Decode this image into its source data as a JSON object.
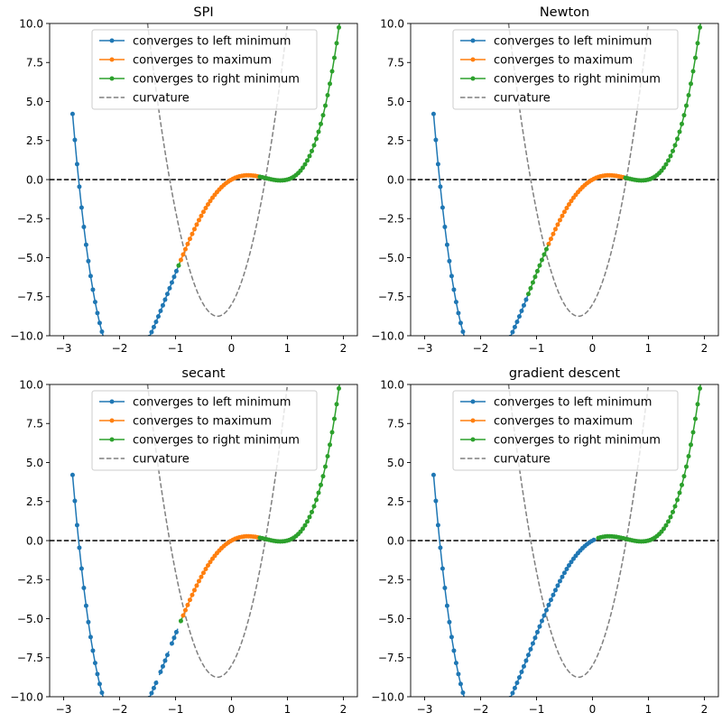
{
  "chart_data": [
    {
      "type": "line",
      "title": "SPI",
      "xlim": [
        -3.25,
        2.25
      ],
      "ylim": [
        -10,
        10
      ],
      "xticks": [
        "−3",
        "−2",
        "−1",
        "0",
        "1",
        "2"
      ],
      "yticks": [
        "−10.0",
        "−7.5",
        "−5.0",
        "−2.5",
        "0.0",
        "2.5",
        "5.0",
        "7.5",
        "10.0"
      ],
      "function": "y = x^4 + x^3 - 4x^2 + 2x (approx. fit)",
      "curvature": "y = 12x^2 + 6x - 8",
      "reference_line_y": 0,
      "legend": {
        "position": "upper-center",
        "entries": [
          "converges to left minimum",
          "converges to maximum",
          "converges to right minimum",
          "curvature"
        ]
      },
      "series": [
        {
          "name": "converges to left minimum",
          "color": "#1f77b4",
          "x_ranges": [
            [
              -2.84,
              -0.96
            ]
          ]
        },
        {
          "name": "converges to maximum",
          "color": "#ff7f0e",
          "x_ranges": [
            [
              -0.92,
              0.49
            ]
          ]
        },
        {
          "name": "converges to right minimum",
          "color": "#2ca02c",
          "x_ranges": [
            [
              -0.96,
              -0.92
            ],
            [
              0.49,
              1.98
            ]
          ]
        }
      ]
    },
    {
      "type": "line",
      "title": "Newton",
      "xlim": [
        -3.25,
        2.25
      ],
      "ylim": [
        -10,
        10
      ],
      "xticks": [
        "−3",
        "−2",
        "−1",
        "0",
        "1",
        "2"
      ],
      "yticks": [
        "−10.0",
        "−7.5",
        "−5.0",
        "−2.5",
        "0.0",
        "2.5",
        "5.0",
        "7.5",
        "10.0"
      ],
      "reference_line_y": 0,
      "legend": {
        "position": "upper-center",
        "entries": [
          "converges to left minimum",
          "converges to maximum",
          "converges to right minimum",
          "curvature"
        ]
      },
      "series": [
        {
          "name": "converges to left minimum",
          "color": "#1f77b4",
          "x_ranges": [
            [
              -2.84,
              -1.15
            ]
          ]
        },
        {
          "name": "converges to maximum",
          "color": "#ff7f0e",
          "x_ranges": [
            [
              -0.79,
              0.56
            ]
          ]
        },
        {
          "name": "converges to right minimum",
          "color": "#2ca02c",
          "x_ranges": [
            [
              -1.15,
              -0.79
            ],
            [
              0.56,
              1.98
            ]
          ]
        }
      ]
    },
    {
      "type": "line",
      "title": "secant",
      "xlim": [
        -3.25,
        2.25
      ],
      "ylim": [
        -10,
        10
      ],
      "xticks": [
        "−3",
        "−2",
        "−1",
        "0",
        "1",
        "2"
      ],
      "yticks": [
        "−10.0",
        "−7.5",
        "−5.0",
        "−2.5",
        "0.0",
        "2.5",
        "5.0",
        "7.5",
        "10.0"
      ],
      "reference_line_y": 0,
      "legend": {
        "position": "upper-center",
        "entries": [
          "converges to left minimum",
          "converges to maximum",
          "converges to right minimum",
          "curvature"
        ]
      },
      "series": [
        {
          "name": "converges to left minimum",
          "color": "#1f77b4",
          "x_ranges": [
            [
              -2.84,
              -1.54
            ],
            [
              -1.5,
              -1.33
            ],
            [
              -1.29,
              -1.12
            ],
            [
              -1.08,
              -0.96
            ]
          ]
        },
        {
          "name": "converges to maximum",
          "color": "#ff7f0e",
          "x_ranges": [
            [
              -0.88,
              0.49
            ]
          ]
        },
        {
          "name": "converges to right minimum",
          "color": "#2ca02c",
          "x_ranges": [
            [
              -0.92,
              -0.88
            ],
            [
              0.49,
              1.98
            ]
          ]
        }
      ]
    },
    {
      "type": "line",
      "title": "gradient descent",
      "xlim": [
        -3.25,
        2.25
      ],
      "ylim": [
        -10,
        10
      ],
      "xticks": [
        "−3",
        "−2",
        "−1",
        "0",
        "1",
        "2"
      ],
      "yticks": [
        "−10.0",
        "−7.5",
        "−5.0",
        "−2.5",
        "0.0",
        "2.5",
        "5.0",
        "7.5",
        "10.0"
      ],
      "reference_line_y": 0,
      "legend": {
        "position": "upper-center",
        "entries": [
          "converges to left minimum",
          "converges to maximum",
          "converges to right minimum",
          "curvature"
        ]
      },
      "series": [
        {
          "name": "converges to left minimum",
          "color": "#1f77b4",
          "x_ranges": [
            [
              -2.84,
              0.06
            ]
          ]
        },
        {
          "name": "converges to maximum",
          "color": "#ff7f0e",
          "x_ranges": []
        },
        {
          "name": "converges to right minimum",
          "color": "#2ca02c",
          "x_ranges": [
            [
              0.1,
              1.98
            ]
          ]
        }
      ]
    }
  ],
  "colors": {
    "left_min": "#1f77b4",
    "maximum": "#ff7f0e",
    "right_min": "#2ca02c",
    "curvature": "#7f7f7f",
    "reference": "#000000"
  }
}
